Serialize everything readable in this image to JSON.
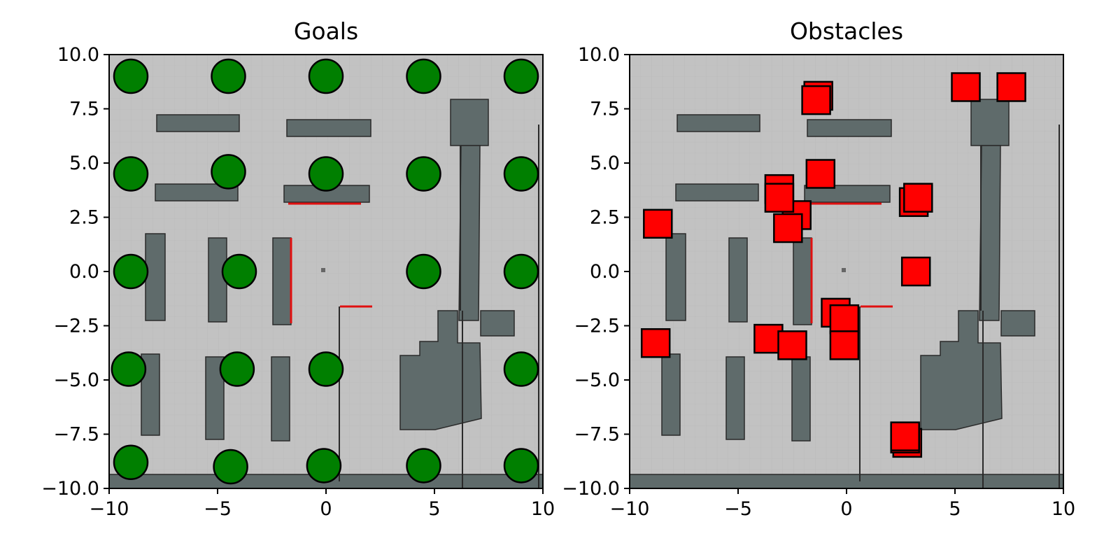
{
  "chart_data": [
    {
      "type": "scatter",
      "title": "Goals",
      "xlim": [
        -10,
        10
      ],
      "ylim": [
        -10,
        10
      ],
      "xticks": [
        -10,
        -5,
        0,
        5,
        10
      ],
      "yticks": [
        -10.0,
        -7.5,
        -5.0,
        -2.5,
        0.0,
        2.5,
        5.0,
        7.5,
        10.0
      ],
      "xtick_labels": [
        "−10",
        "−5",
        "0",
        "5",
        "10"
      ],
      "ytick_labels": [
        "−10.0",
        "−7.5",
        "−5.0",
        "−2.5",
        "0.0",
        "2.5",
        "5.0",
        "7.5",
        "10.0"
      ],
      "marker": "circle",
      "marker_color": "#007f00",
      "background": "occupancy map",
      "points": [
        {
          "x": -9,
          "y": 9
        },
        {
          "x": -4.5,
          "y": 9
        },
        {
          "x": 0,
          "y": 9
        },
        {
          "x": 4.5,
          "y": 9
        },
        {
          "x": 9,
          "y": 9
        },
        {
          "x": -9,
          "y": 4.5
        },
        {
          "x": -4.5,
          "y": 4.6
        },
        {
          "x": 0,
          "y": 4.5
        },
        {
          "x": 4.5,
          "y": 4.5
        },
        {
          "x": 9,
          "y": 4.5
        },
        {
          "x": -9,
          "y": 0
        },
        {
          "x": -4,
          "y": 0
        },
        {
          "x": 4.5,
          "y": 0
        },
        {
          "x": 9,
          "y": 0
        },
        {
          "x": -9.1,
          "y": -4.5
        },
        {
          "x": -4.1,
          "y": -4.5
        },
        {
          "x": 0,
          "y": -4.5
        },
        {
          "x": 9,
          "y": -4.5
        },
        {
          "x": -9,
          "y": -8.8
        },
        {
          "x": -4.4,
          "y": -9
        },
        {
          "x": -0.1,
          "y": -8.95
        },
        {
          "x": 4.5,
          "y": -8.95
        },
        {
          "x": 9,
          "y": -8.95
        }
      ]
    },
    {
      "type": "scatter",
      "title": "Obstacles",
      "xlim": [
        -10,
        10
      ],
      "ylim": [
        -10,
        10
      ],
      "xticks": [
        -10,
        -5,
        0,
        5,
        10
      ],
      "yticks": [
        -10.0,
        -7.5,
        -5.0,
        -2.5,
        0.0,
        2.5,
        5.0,
        7.5,
        10.0
      ],
      "xtick_labels": [
        "−10",
        "−5",
        "0",
        "5",
        "10"
      ],
      "ytick_labels": [
        "−10.0",
        "−7.5",
        "−5.0",
        "−2.5",
        "0.0",
        "2.5",
        "5.0",
        "7.5",
        "10.0"
      ],
      "marker": "square",
      "marker_color": "#ff0000",
      "background": "occupancy map",
      "points": [
        {
          "x": -1.3,
          "y": 8.1
        },
        {
          "x": -1.4,
          "y": 7.9
        },
        {
          "x": 5.5,
          "y": 8.5
        },
        {
          "x": 7.6,
          "y": 8.5
        },
        {
          "x": -1.2,
          "y": 4.5
        },
        {
          "x": -2.3,
          "y": 2.6
        },
        {
          "x": -3.1,
          "y": 3.8
        },
        {
          "x": -3.1,
          "y": 3.4
        },
        {
          "x": -2.7,
          "y": 2.0
        },
        {
          "x": 3.1,
          "y": 3.2
        },
        {
          "x": 3.3,
          "y": 3.4
        },
        {
          "x": -8.7,
          "y": 2.2
        },
        {
          "x": 3.2,
          "y": 0.0
        },
        {
          "x": -0.5,
          "y": -1.9
        },
        {
          "x": -0.1,
          "y": -2.2
        },
        {
          "x": -0.1,
          "y": -3.4
        },
        {
          "x": -3.6,
          "y": -3.1
        },
        {
          "x": -2.5,
          "y": -3.4
        },
        {
          "x": -8.8,
          "y": -3.3
        },
        {
          "x": 2.8,
          "y": -7.9
        },
        {
          "x": 2.7,
          "y": -7.7
        },
        {
          "x": 2.7,
          "y": -7.6
        }
      ]
    }
  ]
}
